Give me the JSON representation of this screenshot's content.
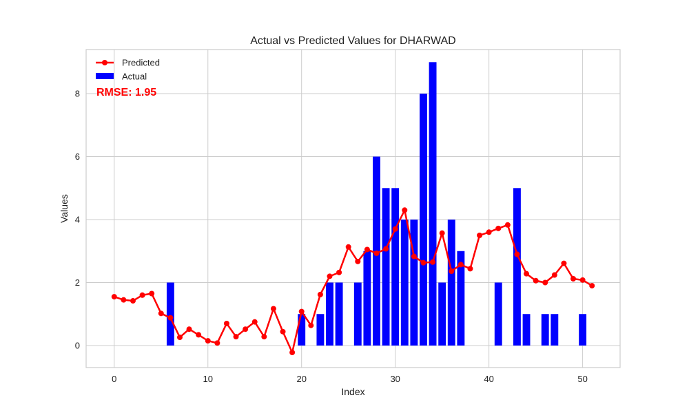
{
  "chart_data": {
    "type": "bar+line",
    "title": "Actual vs Predicted Values for DHARWAD",
    "xlabel": "Index",
    "ylabel": "Values",
    "xlim": [
      -3,
      54
    ],
    "ylim": [
      -0.7,
      9.4
    ],
    "xticks": [
      0,
      10,
      20,
      30,
      40,
      50
    ],
    "yticks": [
      0,
      2,
      4,
      6,
      8
    ],
    "grid": true,
    "legend_position": "top-left",
    "annotation": "RMSE: 1.95",
    "series": [
      {
        "name": "Predicted",
        "kind": "line",
        "color": "#ff0000",
        "x": [
          0,
          1,
          2,
          3,
          4,
          5,
          6,
          7,
          8,
          9,
          10,
          11,
          12,
          13,
          14,
          15,
          16,
          17,
          18,
          19,
          20,
          21,
          22,
          23,
          24,
          25,
          26,
          27,
          28,
          29,
          30,
          31,
          32,
          33,
          34,
          35,
          36,
          37,
          38,
          39,
          40,
          41,
          42,
          43,
          44,
          45,
          46,
          47,
          48,
          49,
          50,
          51
        ],
        "values": [
          1.55,
          1.45,
          1.42,
          1.6,
          1.65,
          1.02,
          0.88,
          0.26,
          0.52,
          0.34,
          0.15,
          0.08,
          0.7,
          0.28,
          0.52,
          0.75,
          0.28,
          1.17,
          0.44,
          -0.22,
          1.08,
          0.64,
          1.62,
          2.2,
          2.32,
          3.13,
          2.67,
          3.05,
          2.93,
          3.07,
          3.7,
          4.3,
          2.83,
          2.63,
          2.65,
          3.57,
          2.36,
          2.57,
          2.44,
          3.5,
          3.6,
          3.72,
          3.83,
          2.9,
          2.28,
          2.06,
          2.0,
          2.24,
          2.61,
          2.12,
          2.08,
          1.9
        ]
      },
      {
        "name": "Actual",
        "kind": "bar",
        "color": "#0000ff",
        "x": [
          0,
          1,
          2,
          3,
          4,
          5,
          6,
          7,
          8,
          9,
          10,
          11,
          12,
          13,
          14,
          15,
          16,
          17,
          18,
          19,
          20,
          21,
          22,
          23,
          24,
          25,
          26,
          27,
          28,
          29,
          30,
          31,
          32,
          33,
          34,
          35,
          36,
          37,
          38,
          39,
          40,
          41,
          42,
          43,
          44,
          45,
          46,
          47,
          48,
          49,
          50,
          51
        ],
        "values": [
          0,
          0,
          0,
          0,
          0,
          0,
          2,
          0,
          0,
          0,
          0,
          0,
          0,
          0,
          0,
          0,
          0,
          0,
          0,
          0,
          1,
          0,
          1,
          2,
          2,
          0,
          2,
          3,
          6,
          5,
          5,
          4,
          4,
          8,
          9,
          2,
          4,
          3,
          0,
          0,
          0,
          2,
          0,
          5,
          1,
          0,
          1,
          1,
          0,
          0,
          1,
          0
        ]
      }
    ]
  }
}
